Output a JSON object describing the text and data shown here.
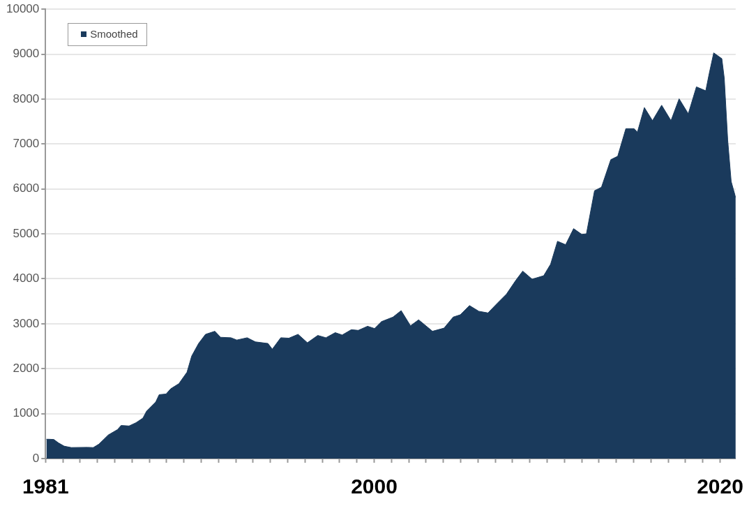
{
  "chart_data": {
    "type": "area",
    "x": [
      1981.05,
      1981.19,
      1981.48,
      1981.75,
      1982.08,
      1982.49,
      1983.42,
      1983.76,
      1984.09,
      1984.63,
      1985.16,
      1985.37,
      1985.83,
      1986.23,
      1986.63,
      1986.84,
      1987.37,
      1987.57,
      1987.97,
      1988.24,
      1988.71,
      1989.18,
      1989.45,
      1989.85,
      1990.25,
      1990.79,
      1991.12,
      1991.72,
      1992.06,
      1992.66,
      1993.13,
      1993.86,
      1994.11,
      1994.6,
      1995.07,
      1995.6,
      1996.14,
      1996.74,
      1997.21,
      1997.75,
      1998.15,
      1998.68,
      1999.08,
      1999.62,
      2000.02,
      2000.42,
      2001.09,
      2001.56,
      2002.1,
      2002.57,
      2003.37,
      2004.04,
      2004.57,
      2004.98,
      2005.51,
      2006.05,
      2006.58,
      2007.12,
      2007.65,
      2008.19,
      2008.59,
      2009.13,
      2009.8,
      2010.2,
      2010.6,
      2011.07,
      2011.53,
      2012.0,
      2012.27,
      2012.74,
      2013.14,
      2013.68,
      2014.08,
      2014.55,
      2015.02,
      2015.22,
      2015.62,
      2016.09,
      2016.62,
      2017.16,
      2017.63,
      2018.16,
      2018.63,
      2019.17,
      2019.37,
      2019.63,
      2020.1,
      2020.24,
      2020.44,
      2020.64,
      2020.9
    ],
    "series": [
      {
        "name": "Smoothed",
        "color": "#1a3a5c",
        "values": [
          430,
          430,
          425,
          348,
          276,
          245,
          250,
          245,
          322,
          526,
          644,
          736,
          725,
          798,
          900,
          1054,
          1258,
          1422,
          1437,
          1554,
          1667,
          1922,
          2281,
          2561,
          2765,
          2833,
          2699,
          2689,
          2638,
          2689,
          2597,
          2561,
          2434,
          2689,
          2679,
          2765,
          2577,
          2740,
          2689,
          2802,
          2750,
          2868,
          2853,
          2945,
          2894,
          3047,
          3149,
          3292,
          2955,
          3088,
          2833,
          2903,
          3149,
          3200,
          3405,
          3278,
          3241,
          3456,
          3660,
          3967,
          4172,
          3992,
          4069,
          4325,
          4836,
          4759,
          5117,
          4990,
          5000,
          5961,
          6038,
          6652,
          6728,
          7342,
          7342,
          7265,
          7812,
          7520,
          7863,
          7520,
          8006,
          7673,
          8272,
          8185,
          8569,
          9029,
          8900,
          8466,
          7086,
          6166,
          5808
        ]
      }
    ],
    "xlim": [
      1981,
      2020.9
    ],
    "xticks": [
      {
        "value": 1981,
        "label": "1981"
      },
      {
        "value": 1982,
        "label": null
      },
      {
        "value": 1983,
        "label": null
      },
      {
        "value": 1984,
        "label": null
      },
      {
        "value": 1985,
        "label": null
      },
      {
        "value": 1986,
        "label": null
      },
      {
        "value": 1987,
        "label": null
      },
      {
        "value": 1988,
        "label": null
      },
      {
        "value": 1989,
        "label": null
      },
      {
        "value": 1990,
        "label": null
      },
      {
        "value": 1991,
        "label": null
      },
      {
        "value": 1992,
        "label": null
      },
      {
        "value": 1993,
        "label": null
      },
      {
        "value": 1994,
        "label": null
      },
      {
        "value": 1995,
        "label": null
      },
      {
        "value": 1996,
        "label": null
      },
      {
        "value": 1997,
        "label": null
      },
      {
        "value": 1998,
        "label": null
      },
      {
        "value": 1999,
        "label": null
      },
      {
        "value": 2000,
        "label": "2000"
      },
      {
        "value": 2001,
        "label": null
      },
      {
        "value": 2002,
        "label": null
      },
      {
        "value": 2003,
        "label": null
      },
      {
        "value": 2004,
        "label": null
      },
      {
        "value": 2005,
        "label": null
      },
      {
        "value": 2006,
        "label": null
      },
      {
        "value": 2007,
        "label": null
      },
      {
        "value": 2008,
        "label": null
      },
      {
        "value": 2009,
        "label": null
      },
      {
        "value": 2010,
        "label": null
      },
      {
        "value": 2011,
        "label": null
      },
      {
        "value": 2012,
        "label": null
      },
      {
        "value": 2013,
        "label": null
      },
      {
        "value": 2014,
        "label": null
      },
      {
        "value": 2015,
        "label": null
      },
      {
        "value": 2016,
        "label": null
      },
      {
        "value": 2017,
        "label": null
      },
      {
        "value": 2018,
        "label": null
      },
      {
        "value": 2019,
        "label": null
      },
      {
        "value": 2020,
        "label": "2020"
      }
    ],
    "ylim": [
      0,
      10000
    ],
    "yticks": [
      0,
      1000,
      2000,
      3000,
      4000,
      5000,
      6000,
      7000,
      8000,
      9000,
      10000
    ],
    "grid": "y",
    "legend": "top left"
  }
}
